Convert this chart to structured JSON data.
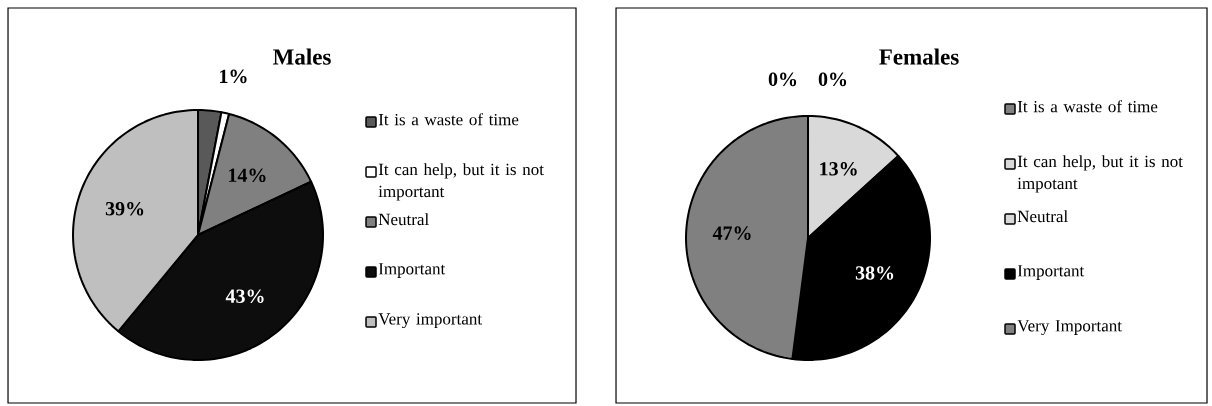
{
  "chart_data": [
    {
      "type": "pie",
      "title": "Males",
      "legend": "right",
      "categories": [
        "It is a waste of time",
        "It can help, but it is not important",
        "Neutral",
        "Important",
        "Very important"
      ],
      "values": [
        3,
        1,
        14,
        43,
        39
      ],
      "value_labels": [
        null,
        "1%",
        "14%",
        "43%",
        "39%"
      ],
      "colors": [
        "#595959",
        "#ffffff",
        "#808080",
        "#0d0d0d",
        "#bfbfbf"
      ]
    },
    {
      "type": "pie",
      "title": "Females",
      "legend": "right",
      "categories": [
        "It is a waste of time",
        "It can help, but it is not impotant",
        "Neutral",
        "Important",
        "Very Important"
      ],
      "values": [
        0,
        0,
        13,
        38,
        47
      ],
      "value_labels": [
        "0%",
        "0%",
        "13%",
        "38%",
        "47%"
      ],
      "colors": [
        "#808080",
        "#d9d9d9",
        "#d9d9d9",
        "#000000",
        "#808080"
      ]
    }
  ]
}
